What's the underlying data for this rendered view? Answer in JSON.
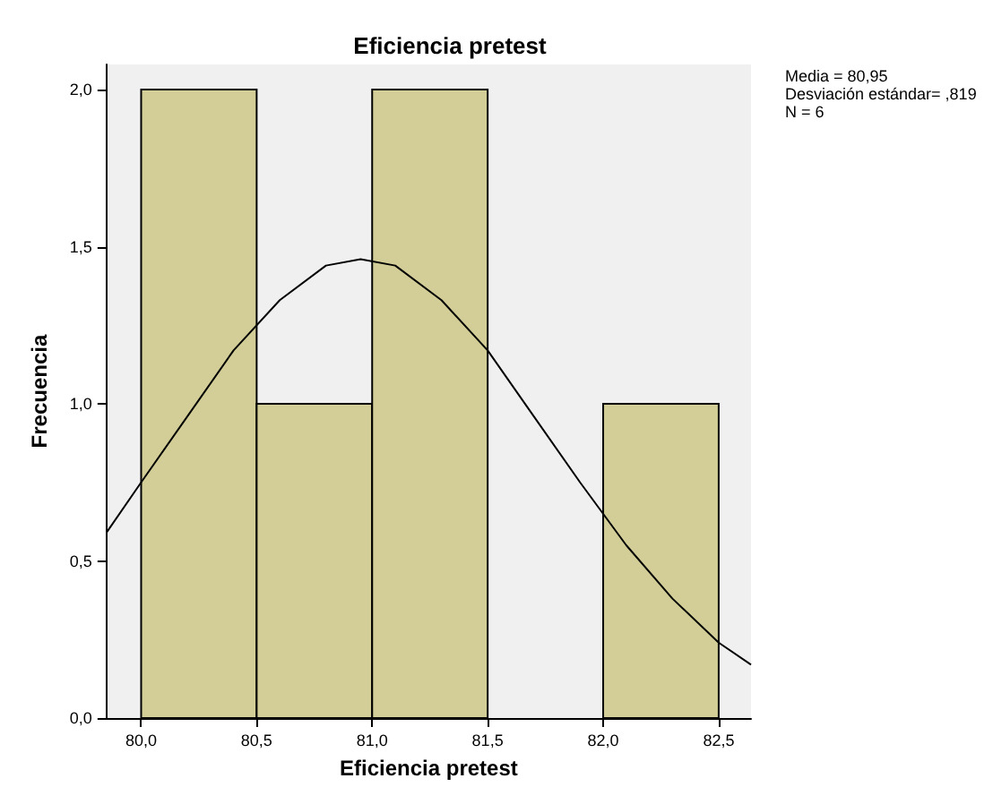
{
  "chart_data": {
    "type": "histogram",
    "title": "Eficiencia pretest",
    "xlabel": "Eficiencia pretest",
    "ylabel": "Frecuencia",
    "bins": [
      80.0,
      80.5,
      81.0,
      81.5,
      82.0,
      82.5
    ],
    "values": [
      2,
      1,
      2,
      0,
      1
    ],
    "color": "#d3ce97",
    "series": [
      {
        "type": "line",
        "color": "#000000",
        "x": [
          79.85,
          80.0,
          80.2,
          80.4,
          80.6,
          80.8,
          80.95,
          81.1,
          81.3,
          81.5,
          81.7,
          81.9,
          82.1,
          82.3,
          82.5,
          82.64
        ],
        "values": [
          0.59,
          0.75,
          0.96,
          1.17,
          1.33,
          1.44,
          1.46,
          1.44,
          1.33,
          1.17,
          0.96,
          0.75,
          0.55,
          0.38,
          0.24,
          0.17
        ]
      }
    ],
    "marker": "none",
    "line_style": "solid",
    "grid": false,
    "xlim": [
      79.85,
      82.64
    ],
    "xticks": [
      {
        "value": 80.0,
        "label": "80,0"
      },
      {
        "value": 80.5,
        "label": "80,5"
      },
      {
        "value": 81.0,
        "label": "81,0"
      },
      {
        "value": 81.5,
        "label": "81,5"
      },
      {
        "value": 82.0,
        "label": "82,0"
      },
      {
        "value": 82.5,
        "label": "82,5"
      }
    ],
    "ylim": [
      0,
      2.08
    ],
    "yticks": [
      {
        "value": 0,
        "label": "0,0"
      },
      {
        "value": 0.5,
        "label": "0,5"
      },
      {
        "value": 1.0,
        "label": "1,0"
      },
      {
        "value": 1.5,
        "label": "1,5"
      },
      {
        "value": 2.0,
        "label": "2,0"
      }
    ],
    "annotations": [
      "Media = 80,95",
      "Desviación estándar= ,819",
      "N = 6"
    ]
  }
}
